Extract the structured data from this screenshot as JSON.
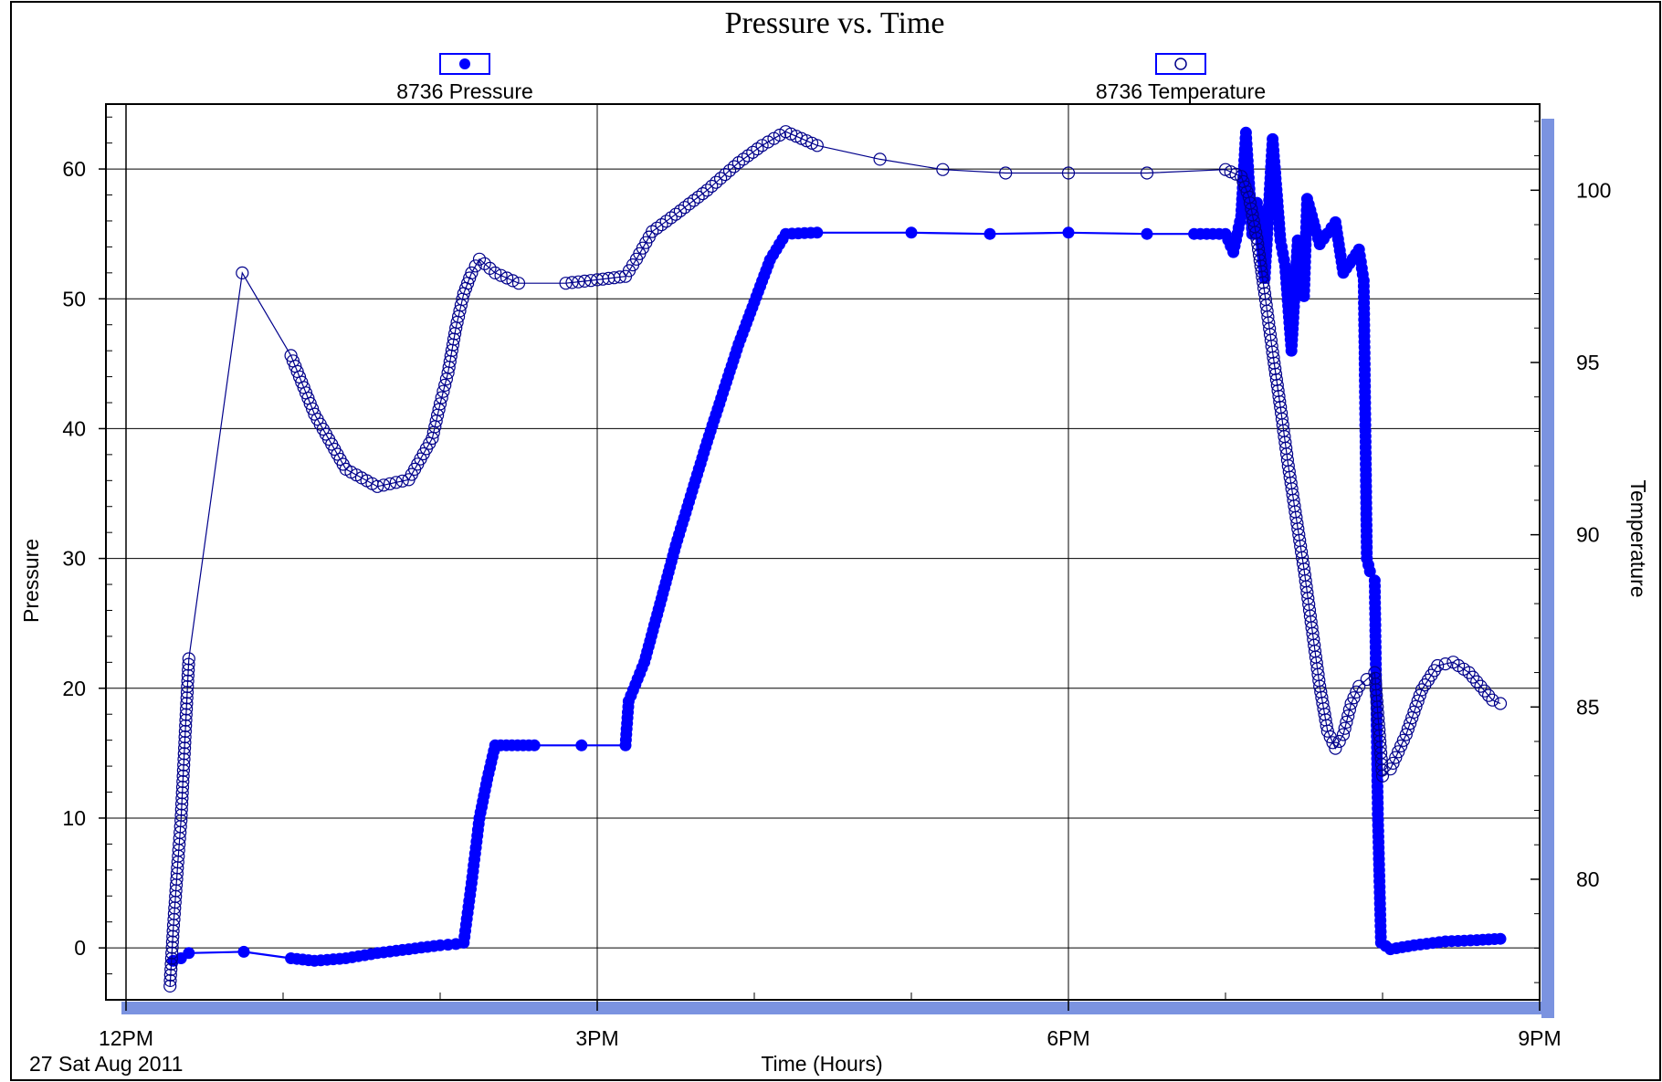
{
  "chart_data": {
    "type": "scatter",
    "title": "Pressure vs. Time",
    "xlabel": "Time (Hours)",
    "ylabel": "Pressure",
    "y2label": "Temperature",
    "date_label": "27 Sat Aug 2011",
    "x_ticks": [
      {
        "hour": 12,
        "label": "12PM"
      },
      {
        "hour": 15,
        "label": "3PM"
      },
      {
        "hour": 18,
        "label": "6PM"
      },
      {
        "hour": 21,
        "label": "9PM"
      }
    ],
    "xlim_hours": [
      12.0,
      21.0
    ],
    "ylim": [
      -4,
      65
    ],
    "y_ticks": [
      "0",
      "10",
      "20",
      "30",
      "40",
      "50",
      "60"
    ],
    "y2lim": [
      76.5,
      102.5
    ],
    "y2_ticks": [
      "80",
      "85",
      "90",
      "95",
      "100"
    ],
    "grid": true,
    "legend_placement": "top",
    "series": [
      {
        "name": "8736 Pressure",
        "axis": "left",
        "marker": "filled-circle",
        "color": "#0000ff",
        "points": [
          [
            12.3,
            -1.0
          ],
          [
            12.35,
            -0.8
          ],
          [
            12.4,
            -0.4
          ],
          [
            12.75,
            -0.3
          ],
          [
            13.05,
            -0.8
          ],
          [
            13.2,
            -1.0
          ],
          [
            13.4,
            -0.8
          ],
          [
            13.6,
            -0.4
          ],
          [
            13.8,
            -0.1
          ],
          [
            14.0,
            0.2
          ],
          [
            14.1,
            0.3
          ],
          [
            14.15,
            0.4
          ],
          [
            14.2,
            5.0
          ],
          [
            14.25,
            10.0
          ],
          [
            14.3,
            13.0
          ],
          [
            14.35,
            15.6
          ],
          [
            14.6,
            15.6
          ],
          [
            14.9,
            15.6
          ],
          [
            15.18,
            15.6
          ],
          [
            15.2,
            19.0
          ],
          [
            15.3,
            22.0
          ],
          [
            15.5,
            31.0
          ],
          [
            15.7,
            39.0
          ],
          [
            15.9,
            46.5
          ],
          [
            16.1,
            53.0
          ],
          [
            16.2,
            55.0
          ],
          [
            16.4,
            55.1
          ],
          [
            17.0,
            55.1
          ],
          [
            17.5,
            55.0
          ],
          [
            18.0,
            55.1
          ],
          [
            18.5,
            55.0
          ],
          [
            18.8,
            55.0
          ],
          [
            19.0,
            55.0
          ],
          [
            19.05,
            53.6
          ],
          [
            19.1,
            56.4
          ],
          [
            19.13,
            62.8
          ],
          [
            19.17,
            55.0
          ],
          [
            19.2,
            57.4
          ],
          [
            19.25,
            51.6
          ],
          [
            19.3,
            62.3
          ],
          [
            19.35,
            54.5
          ],
          [
            19.38,
            52.5
          ],
          [
            19.42,
            46.0
          ],
          [
            19.46,
            54.5
          ],
          [
            19.5,
            50.2
          ],
          [
            19.52,
            57.7
          ],
          [
            19.6,
            54.2
          ],
          [
            19.7,
            55.9
          ],
          [
            19.75,
            52.0
          ],
          [
            19.85,
            53.8
          ],
          [
            19.88,
            51.4
          ],
          [
            19.9,
            30.0
          ],
          [
            19.92,
            29.0
          ],
          [
            19.95,
            28.3
          ],
          [
            19.97,
            10.3
          ],
          [
            19.99,
            0.4
          ],
          [
            20.05,
            -0.1
          ],
          [
            20.2,
            0.2
          ],
          [
            20.4,
            0.5
          ],
          [
            20.6,
            0.6
          ],
          [
            20.75,
            0.7
          ]
        ]
      },
      {
        "name": "8736 Temperature",
        "axis": "right",
        "marker": "open-circle",
        "color": "#00008b",
        "points": [
          [
            12.28,
            76.9
          ],
          [
            12.3,
            78.5
          ],
          [
            12.33,
            80.5
          ],
          [
            12.35,
            81.7
          ],
          [
            12.4,
            86.4
          ],
          [
            12.74,
            97.6
          ],
          [
            13.05,
            95.2
          ],
          [
            13.2,
            93.5
          ],
          [
            13.4,
            91.9
          ],
          [
            13.6,
            91.4
          ],
          [
            13.8,
            91.6
          ],
          [
            13.95,
            92.8
          ],
          [
            14.0,
            93.8
          ],
          [
            14.05,
            94.7
          ],
          [
            14.1,
            96.0
          ],
          [
            14.15,
            97.0
          ],
          [
            14.2,
            97.6
          ],
          [
            14.25,
            98.0
          ],
          [
            14.35,
            97.6
          ],
          [
            14.5,
            97.3
          ],
          [
            14.8,
            97.3
          ],
          [
            15.0,
            97.4
          ],
          [
            15.18,
            97.5
          ],
          [
            15.25,
            98.0
          ],
          [
            15.35,
            98.8
          ],
          [
            15.5,
            99.3
          ],
          [
            15.7,
            100.0
          ],
          [
            15.9,
            100.8
          ],
          [
            16.05,
            101.3
          ],
          [
            16.2,
            101.7
          ],
          [
            16.4,
            101.3
          ],
          [
            16.8,
            100.9
          ],
          [
            17.2,
            100.6
          ],
          [
            17.6,
            100.5
          ],
          [
            18.0,
            100.5
          ],
          [
            18.5,
            100.5
          ],
          [
            19.0,
            100.6
          ],
          [
            19.1,
            100.4
          ],
          [
            19.15,
            99.8
          ],
          [
            19.2,
            98.6
          ],
          [
            19.25,
            97.0
          ],
          [
            19.3,
            95.3
          ],
          [
            19.35,
            93.7
          ],
          [
            19.4,
            92.0
          ],
          [
            19.45,
            90.5
          ],
          [
            19.5,
            89.0
          ],
          [
            19.55,
            87.3
          ],
          [
            19.6,
            85.6
          ],
          [
            19.65,
            84.3
          ],
          [
            19.7,
            83.8
          ],
          [
            19.75,
            84.2
          ],
          [
            19.8,
            85.1
          ],
          [
            19.85,
            85.6
          ],
          [
            19.9,
            85.8
          ],
          [
            19.95,
            86.0
          ],
          [
            20.0,
            83.0
          ],
          [
            20.05,
            83.2
          ],
          [
            20.15,
            84.2
          ],
          [
            20.25,
            85.5
          ],
          [
            20.35,
            86.2
          ],
          [
            20.45,
            86.3
          ],
          [
            20.55,
            86.0
          ],
          [
            20.7,
            85.2
          ],
          [
            20.75,
            85.1
          ]
        ]
      }
    ]
  }
}
